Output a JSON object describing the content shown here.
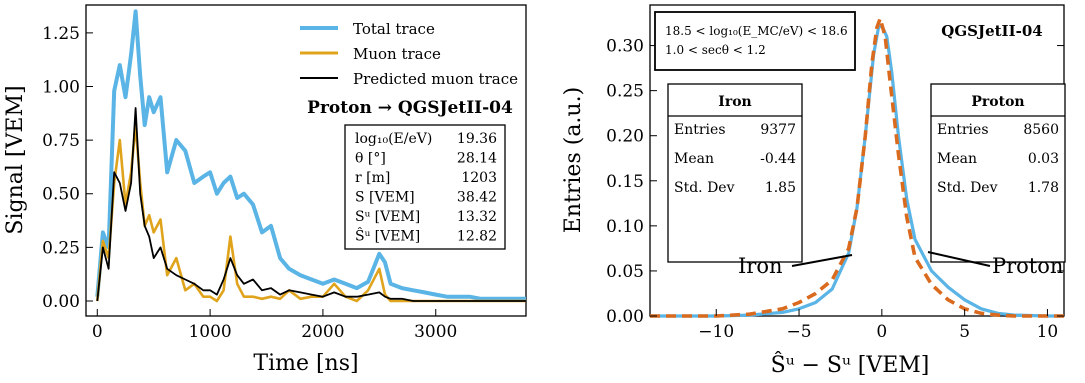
{
  "colors": {
    "total": "#5ab4e5",
    "muon": "#e0a41c",
    "predicted": "#000000",
    "iron": "#d96a1e",
    "proton": "#5ab4e5"
  },
  "chart_data": [
    {
      "type": "line",
      "title": "",
      "xlabel": "Time [ns]",
      "ylabel": "Signal [VEM]",
      "xlim": [
        -100,
        3800
      ],
      "ylim": [
        -0.07,
        1.38
      ],
      "xticks": [
        0,
        1000,
        2000,
        3000
      ],
      "yticks": [
        0.0,
        0.25,
        0.5,
        0.75,
        1.0,
        1.25
      ],
      "xtick_labels": [
        "0",
        "1000",
        "2000",
        "3000"
      ],
      "ytick_labels": [
        "0.00",
        "0.25",
        "0.50",
        "0.75",
        "1.00",
        "1.25"
      ],
      "legend": [
        "Total trace",
        "Muon trace",
        "Predicted muon trace"
      ],
      "legend_position": "top-right",
      "info_title": "Proton → QGSJetII-04",
      "info_rows": [
        {
          "label": "log₁₀(E/eV)",
          "value": "19.36"
        },
        {
          "label": "θ [°]",
          "value": "28.14"
        },
        {
          "label": "r [m]",
          "value": "1203"
        },
        {
          "label": "S [VEM]",
          "value": "38.42"
        },
        {
          "label": "Sᵘ [VEM]",
          "value": "13.32"
        },
        {
          "label": "Ŝᵘ [VEM]",
          "value": "12.82"
        }
      ],
      "series": [
        {
          "name": "Total trace",
          "x": [
            0,
            50,
            100,
            150,
            200,
            250,
            300,
            340,
            380,
            420,
            460,
            500,
            560,
            620,
            700,
            780,
            860,
            940,
            1000,
            1060,
            1120,
            1180,
            1240,
            1300,
            1380,
            1460,
            1540,
            1620,
            1700,
            1800,
            1900,
            2000,
            2100,
            2200,
            2300,
            2400,
            2500,
            2550,
            2600,
            2700,
            2800,
            2900,
            3000,
            3100,
            3200,
            3300,
            3400,
            3500,
            3600,
            3700,
            3800
          ],
          "y": [
            0.02,
            0.32,
            0.25,
            0.98,
            1.1,
            0.95,
            1.15,
            1.35,
            1.05,
            0.82,
            0.95,
            0.88,
            0.95,
            0.6,
            0.75,
            0.7,
            0.55,
            0.58,
            0.6,
            0.5,
            0.55,
            0.58,
            0.48,
            0.5,
            0.45,
            0.32,
            0.35,
            0.2,
            0.15,
            0.12,
            0.1,
            0.08,
            0.1,
            0.08,
            0.06,
            0.09,
            0.22,
            0.18,
            0.08,
            0.06,
            0.05,
            0.04,
            0.03,
            0.02,
            0.02,
            0.02,
            0.01,
            0.01,
            0.01,
            0.01,
            0.01
          ]
        },
        {
          "name": "Muon trace",
          "x": [
            0,
            50,
            100,
            150,
            200,
            250,
            300,
            340,
            380,
            420,
            460,
            500,
            560,
            620,
            700,
            780,
            860,
            940,
            1000,
            1060,
            1120,
            1180,
            1240,
            1300,
            1380,
            1460,
            1540,
            1620,
            1700,
            1800,
            1900,
            2000,
            2100,
            2200,
            2300,
            2400,
            2500,
            2550,
            2600,
            2700,
            2800,
            2900,
            3000,
            3100,
            3200,
            3300,
            3400,
            3500,
            3600,
            3700,
            3800
          ],
          "y": [
            0.0,
            0.28,
            0.2,
            0.55,
            0.75,
            0.45,
            0.6,
            0.82,
            0.55,
            0.35,
            0.4,
            0.32,
            0.38,
            0.12,
            0.2,
            0.05,
            0.08,
            0.02,
            0.02,
            0.0,
            0.05,
            0.3,
            0.08,
            0.02,
            0.02,
            0.01,
            0.02,
            0.01,
            0.05,
            0.01,
            0.02,
            0.02,
            0.08,
            0.02,
            0.0,
            0.05,
            0.15,
            0.03,
            0.0,
            0.0,
            0.0,
            0.0,
            0.0,
            0.0,
            0.0,
            0.0,
            0.0,
            0.0,
            0.0,
            0.0,
            0.0
          ]
        },
        {
          "name": "Predicted muon trace",
          "x": [
            0,
            50,
            100,
            150,
            200,
            250,
            300,
            340,
            380,
            420,
            460,
            500,
            560,
            620,
            700,
            780,
            860,
            940,
            1000,
            1060,
            1120,
            1180,
            1240,
            1300,
            1380,
            1460,
            1540,
            1620,
            1700,
            1800,
            1900,
            2000,
            2100,
            2200,
            2300,
            2400,
            2500,
            2550,
            2600,
            2700,
            2800,
            2900,
            3000,
            3100,
            3200,
            3300,
            3400,
            3500,
            3600,
            3700,
            3800
          ],
          "y": [
            0.0,
            0.25,
            0.15,
            0.6,
            0.55,
            0.42,
            0.55,
            0.9,
            0.5,
            0.35,
            0.3,
            0.2,
            0.25,
            0.15,
            0.12,
            0.1,
            0.08,
            0.05,
            0.05,
            0.03,
            0.1,
            0.2,
            0.12,
            0.08,
            0.1,
            0.05,
            0.06,
            0.03,
            0.05,
            0.04,
            0.03,
            0.02,
            0.04,
            0.02,
            0.02,
            0.03,
            0.04,
            0.02,
            0.01,
            0.01,
            0.0,
            0.0,
            0.0,
            0.0,
            0.0,
            0.0,
            0.0,
            0.0,
            0.0,
            0.0,
            0.0
          ]
        }
      ]
    },
    {
      "type": "line",
      "title": "",
      "xlabel": "Ŝᵘ − Sᵘ [VEM]",
      "ylabel": "Entries (a.u.)",
      "xlim": [
        -14,
        11
      ],
      "ylim": [
        0,
        0.345
      ],
      "xticks": [
        -10,
        -5,
        0,
        5,
        10
      ],
      "yticks": [
        0.0,
        0.05,
        0.1,
        0.15,
        0.2,
        0.25,
        0.3
      ],
      "xtick_labels": [
        "−10",
        "−5",
        "0",
        "5",
        "10"
      ],
      "ytick_labels": [
        "0.00",
        "0.05",
        "0.10",
        "0.15",
        "0.20",
        "0.25",
        "0.30"
      ],
      "cut_lines": [
        "18.5 < log₁₀(E_MC/eV) < 18.6",
        "1.0 < secθ < 1.2"
      ],
      "model_label": "QGSJetII-04",
      "iron_stats": {
        "title": "Iron",
        "rows": [
          {
            "label": "Entries",
            "value": "9377"
          },
          {
            "label": "Mean",
            "value": "-0.44"
          },
          {
            "label": "Std. Dev",
            "value": "1.85"
          }
        ]
      },
      "proton_stats": {
        "title": "Proton",
        "rows": [
          {
            "label": "Entries",
            "value": "8560"
          },
          {
            "label": "Mean",
            "value": "0.03"
          },
          {
            "label": "Std. Dev",
            "value": "1.78"
          }
        ]
      },
      "annotations": [
        "Iron",
        "Proton"
      ],
      "series": [
        {
          "name": "Proton",
          "x": [
            -14,
            -10,
            -8,
            -6,
            -5,
            -4,
            -3,
            -2,
            -1.5,
            -1,
            -0.5,
            -0.2,
            0,
            0.3,
            0.6,
            1,
            1.5,
            2,
            3,
            4,
            5,
            6,
            7,
            8,
            10,
            11
          ],
          "y": [
            0,
            0,
            0.001,
            0.004,
            0.008,
            0.015,
            0.03,
            0.07,
            0.12,
            0.2,
            0.29,
            0.32,
            0.322,
            0.31,
            0.27,
            0.2,
            0.13,
            0.085,
            0.05,
            0.032,
            0.018,
            0.008,
            0.003,
            0.001,
            0,
            0
          ]
        },
        {
          "name": "Iron",
          "x": [
            -14,
            -10,
            -8,
            -6,
            -5,
            -4,
            -3,
            -2,
            -1.5,
            -1,
            -0.6,
            -0.3,
            -0.1,
            0.2,
            0.5,
            1,
            1.5,
            2,
            3,
            4,
            5,
            6,
            7,
            8,
            10,
            11
          ],
          "y": [
            0,
            0,
            0.002,
            0.008,
            0.015,
            0.025,
            0.04,
            0.075,
            0.12,
            0.2,
            0.28,
            0.32,
            0.33,
            0.31,
            0.26,
            0.18,
            0.11,
            0.065,
            0.035,
            0.018,
            0.008,
            0.003,
            0.001,
            0,
            0,
            0
          ]
        }
      ]
    }
  ]
}
